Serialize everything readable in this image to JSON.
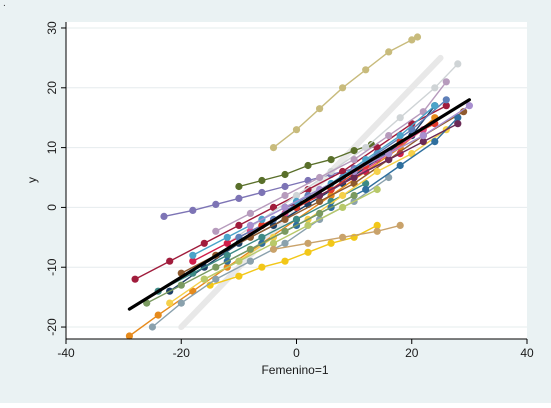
{
  "corner_mark": ".",
  "chart_data": {
    "type": "line",
    "title": "",
    "xlabel": "Femenino=1",
    "ylabel": "y",
    "xlim": [
      -40,
      40
    ],
    "ylim": [
      -22,
      31
    ],
    "xticks": [
      -40,
      -20,
      0,
      20,
      40
    ],
    "yticks": [
      -20,
      -10,
      0,
      10,
      20,
      30
    ],
    "grid": "horizontal",
    "legend": "none",
    "colors": {
      "outer_background": "#eaf2f3",
      "plot_background": "#ffffff",
      "axis": "#000000",
      "fit_line": "#000000",
      "reference_line": "#e8e8e8"
    },
    "series": [
      {
        "color": "#c8bb7c",
        "x": [
          -4,
          0,
          4,
          8,
          12,
          16,
          20,
          21
        ],
        "y": [
          10,
          13,
          16.5,
          20,
          23,
          26,
          28,
          28.5
        ]
      },
      {
        "color": "#596f2a",
        "x": [
          -10,
          -6,
          -2,
          2,
          6,
          10,
          13
        ],
        "y": [
          3.5,
          4.5,
          5.5,
          7,
          8,
          9.5,
          10.5
        ]
      },
      {
        "color": "#7d74b5",
        "x": [
          -23,
          -18,
          -14,
          -10,
          -6,
          -2,
          2,
          6,
          10
        ],
        "y": [
          -1.5,
          -0.5,
          0.5,
          1.5,
          2.5,
          3.5,
          4.5,
          5.5,
          6.5
        ]
      },
      {
        "color": "#f2c718",
        "x": [
          -15,
          -10,
          -6,
          -2,
          2,
          6,
          10,
          14
        ],
        "y": [
          -13,
          -11.5,
          -10,
          -9,
          -7.5,
          -6,
          -5,
          -3
        ]
      },
      {
        "color": "#1d3f66",
        "x": [
          -22,
          -16,
          -10,
          -4,
          2,
          8,
          14,
          20,
          24
        ],
        "y": [
          -14,
          -10,
          -6,
          -3,
          0.5,
          4,
          8,
          12,
          17
        ]
      },
      {
        "color": "#a01c3c",
        "x": [
          -28,
          -22,
          -16,
          -10,
          -4,
          2,
          8,
          14,
          20,
          26
        ],
        "y": [
          -12,
          -9,
          -6,
          -3,
          0,
          3,
          6,
          10,
          14,
          17
        ]
      },
      {
        "color": "#e68a1c",
        "x": [
          -29,
          -24,
          -18,
          -12,
          -6,
          0,
          6,
          12,
          18,
          24
        ],
        "y": [
          -21.5,
          -18,
          -14,
          -10,
          -6,
          -2,
          2,
          6,
          10,
          15
        ]
      },
      {
        "color": "#cfd4d6",
        "x": [
          -12,
          -6,
          0,
          6,
          12,
          18,
          24,
          28
        ],
        "y": [
          -6,
          -2,
          2,
          6,
          10,
          15,
          20,
          24
        ]
      },
      {
        "color": "#8aa1ad",
        "x": [
          -25,
          -20,
          -14,
          -8,
          -2,
          4,
          10,
          16
        ],
        "y": [
          -20,
          -16,
          -12,
          -9,
          -6,
          -2,
          1,
          5
        ]
      },
      {
        "color": "#d11e4a",
        "x": [
          -18,
          -12,
          -6,
          0,
          6,
          12,
          18
        ],
        "y": [
          -9,
          -6,
          -3,
          0,
          3,
          6,
          9
        ]
      },
      {
        "color": "#b79bbd",
        "x": [
          -14,
          -8,
          -2,
          4,
          10,
          16,
          22,
          26
        ],
        "y": [
          -4,
          -1,
          2,
          5,
          8,
          12,
          16,
          21
        ]
      },
      {
        "color": "#3d8a86",
        "x": [
          -24,
          -18,
          -12,
          -6,
          0,
          6,
          12
        ],
        "y": [
          -14,
          -11,
          -8,
          -5,
          -2,
          1,
          4
        ]
      },
      {
        "color": "#e24b87",
        "x": [
          -8,
          -2,
          4,
          10,
          16,
          22
        ],
        "y": [
          -4,
          -1,
          2,
          5,
          9,
          13
        ]
      },
      {
        "color": "#8f5a2e",
        "x": [
          -20,
          -14,
          -8,
          -2,
          4,
          10,
          16,
          22,
          29
        ],
        "y": [
          -11,
          -8,
          -5,
          -2,
          1,
          4,
          8,
          12,
          16
        ]
      },
      {
        "color": "#f5d04a",
        "x": [
          -22,
          -16,
          -10,
          -4,
          2,
          8,
          14,
          20,
          26
        ],
        "y": [
          -16,
          -12,
          -9,
          -5,
          -2,
          2,
          6,
          9,
          13
        ]
      },
      {
        "color": "#5e7fb8",
        "x": [
          -10,
          -4,
          2,
          8,
          14,
          20,
          26
        ],
        "y": [
          -5,
          -2,
          2,
          5,
          9,
          13,
          18
        ]
      },
      {
        "color": "#b8c96a",
        "x": [
          -16,
          -10,
          -4,
          2,
          8,
          14
        ],
        "y": [
          -12,
          -9,
          -6,
          -3,
          0,
          3
        ]
      },
      {
        "color": "#e23a2a",
        "x": [
          -6,
          0,
          6,
          12,
          18,
          24
        ],
        "y": [
          -3,
          0,
          3,
          7,
          11,
          14
        ]
      },
      {
        "color": "#2f6f9e",
        "x": [
          -12,
          -6,
          0,
          6,
          12,
          18,
          24,
          28
        ],
        "y": [
          -9,
          -6,
          -3,
          0,
          3,
          7,
          11,
          15
        ]
      },
      {
        "color": "#7a9a60",
        "x": [
          -26,
          -20,
          -14,
          -8,
          -2,
          4,
          10
        ],
        "y": [
          -16,
          -13,
          -10,
          -7,
          -4,
          -1,
          2
        ]
      },
      {
        "color": "#c9a26a",
        "x": [
          -4,
          2,
          8,
          14,
          18
        ],
        "y": [
          -7,
          -6,
          -5,
          -4,
          -3
        ]
      },
      {
        "color": "#6a2a56",
        "x": [
          -2,
          4,
          10,
          16,
          22,
          28
        ],
        "y": [
          0,
          2,
          5,
          8,
          11,
          14
        ]
      },
      {
        "color": "#4aa3c9",
        "x": [
          -18,
          -12,
          -6,
          0,
          6,
          12,
          18,
          24
        ],
        "y": [
          -8,
          -5,
          -2,
          1,
          4,
          8,
          12,
          17
        ]
      },
      {
        "color": "#a88fcf",
        "x": [
          -8,
          -2,
          4,
          10,
          16,
          22,
          30
        ],
        "y": [
          -3,
          0,
          3,
          6,
          9,
          12,
          17
        ]
      }
    ],
    "fit_line": {
      "x": [
        -29,
        30
      ],
      "y": [
        -17,
        18
      ]
    },
    "reference_line": {
      "x": [
        -20,
        25
      ],
      "y": [
        -20,
        25
      ]
    }
  }
}
